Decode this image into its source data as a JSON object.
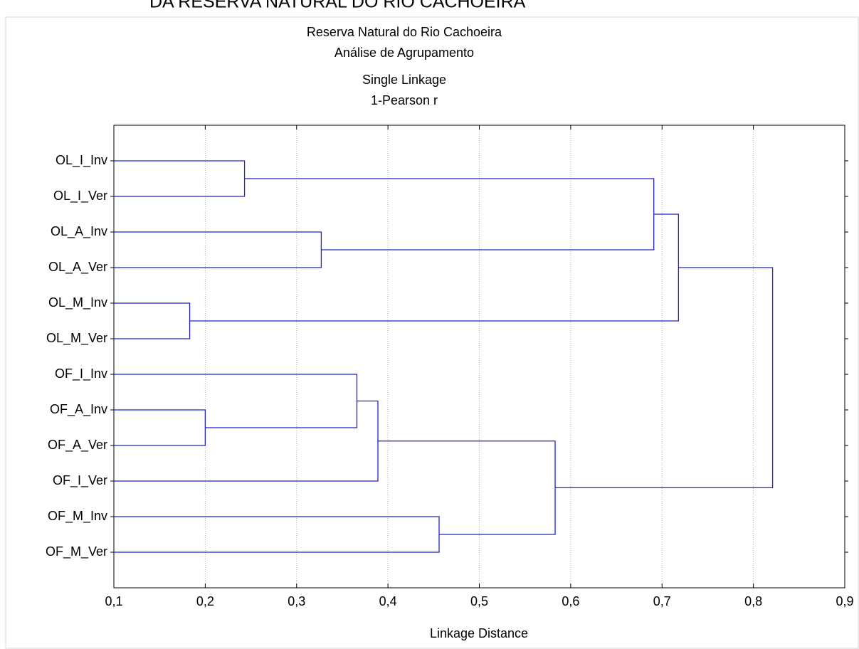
{
  "page_heading": "DA RESERVA NATURAL DO RIO CACHOEIRA",
  "chart_data": {
    "type": "dendrogram",
    "title_lines": [
      "Reserva Natural do Rio Cachoeira",
      "Análise de Agrupamento",
      "Single Linkage",
      "1-Pearson r"
    ],
    "x_label": "Linkage Distance",
    "leaves": [
      "OL_I_Inv",
      "OL_I_Ver",
      "OL_A_Inv",
      "OL_A_Ver",
      "OL_M_Inv",
      "OL_M_Ver",
      "OF_I_Inv",
      "OF_A_Inv",
      "OF_A_Ver",
      "OF_I_Ver",
      "OF_M_Inv",
      "OF_M_Ver"
    ],
    "merges": [
      {
        "left": 0,
        "right": 1,
        "height": 0.243
      },
      {
        "left": 2,
        "right": 3,
        "height": 0.327
      },
      {
        "left": 4,
        "right": 5,
        "height": 0.183
      },
      {
        "left": 7,
        "right": 8,
        "height": 0.2
      },
      {
        "left": 6,
        "right": 15,
        "height": 0.366
      },
      {
        "left": 16,
        "right": 9,
        "height": 0.389
      },
      {
        "left": 10,
        "right": 11,
        "height": 0.456
      },
      {
        "left": 17,
        "right": 18,
        "height": 0.583
      },
      {
        "left": 12,
        "right": 13,
        "height": 0.691
      },
      {
        "left": 20,
        "right": 14,
        "height": 0.718
      },
      {
        "left": 21,
        "right": 19,
        "height": 0.821
      }
    ],
    "color": "#2222cc",
    "xlim": [
      0.1,
      0.9
    ],
    "xticks": [
      {
        "value": 0.1,
        "label": "0,1"
      },
      {
        "value": 0.2,
        "label": "0,2"
      },
      {
        "value": 0.3,
        "label": "0,3"
      },
      {
        "value": 0.4,
        "label": "0,4"
      },
      {
        "value": 0.5,
        "label": "0,5"
      },
      {
        "value": 0.6,
        "label": "0,6"
      },
      {
        "value": 0.7,
        "label": "0,7"
      },
      {
        "value": 0.8,
        "label": "0,8"
      },
      {
        "value": 0.9,
        "label": "0,9"
      }
    ],
    "grid": true
  }
}
